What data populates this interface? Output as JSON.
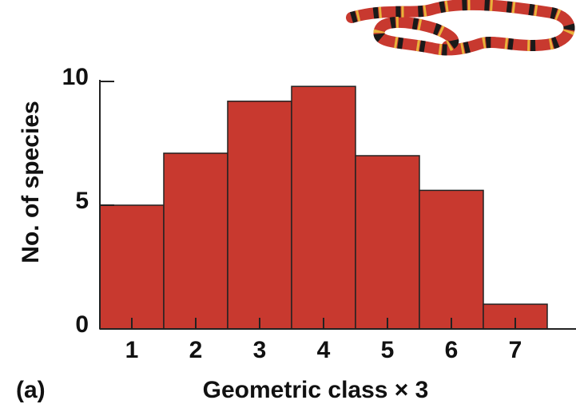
{
  "chart_data": {
    "type": "bar",
    "categories": [
      "1",
      "2",
      "3",
      "4",
      "5",
      "6",
      "7"
    ],
    "values": [
      5,
      7.1,
      9.2,
      9.8,
      7,
      5.6,
      1
    ],
    "color": "#c8392f",
    "ylim": [
      0,
      10
    ],
    "yticks": [
      0,
      5,
      10
    ],
    "xlabel": "Geometric class × 3",
    "ylabel": "No. of species",
    "panel_label": "(a)"
  }
}
